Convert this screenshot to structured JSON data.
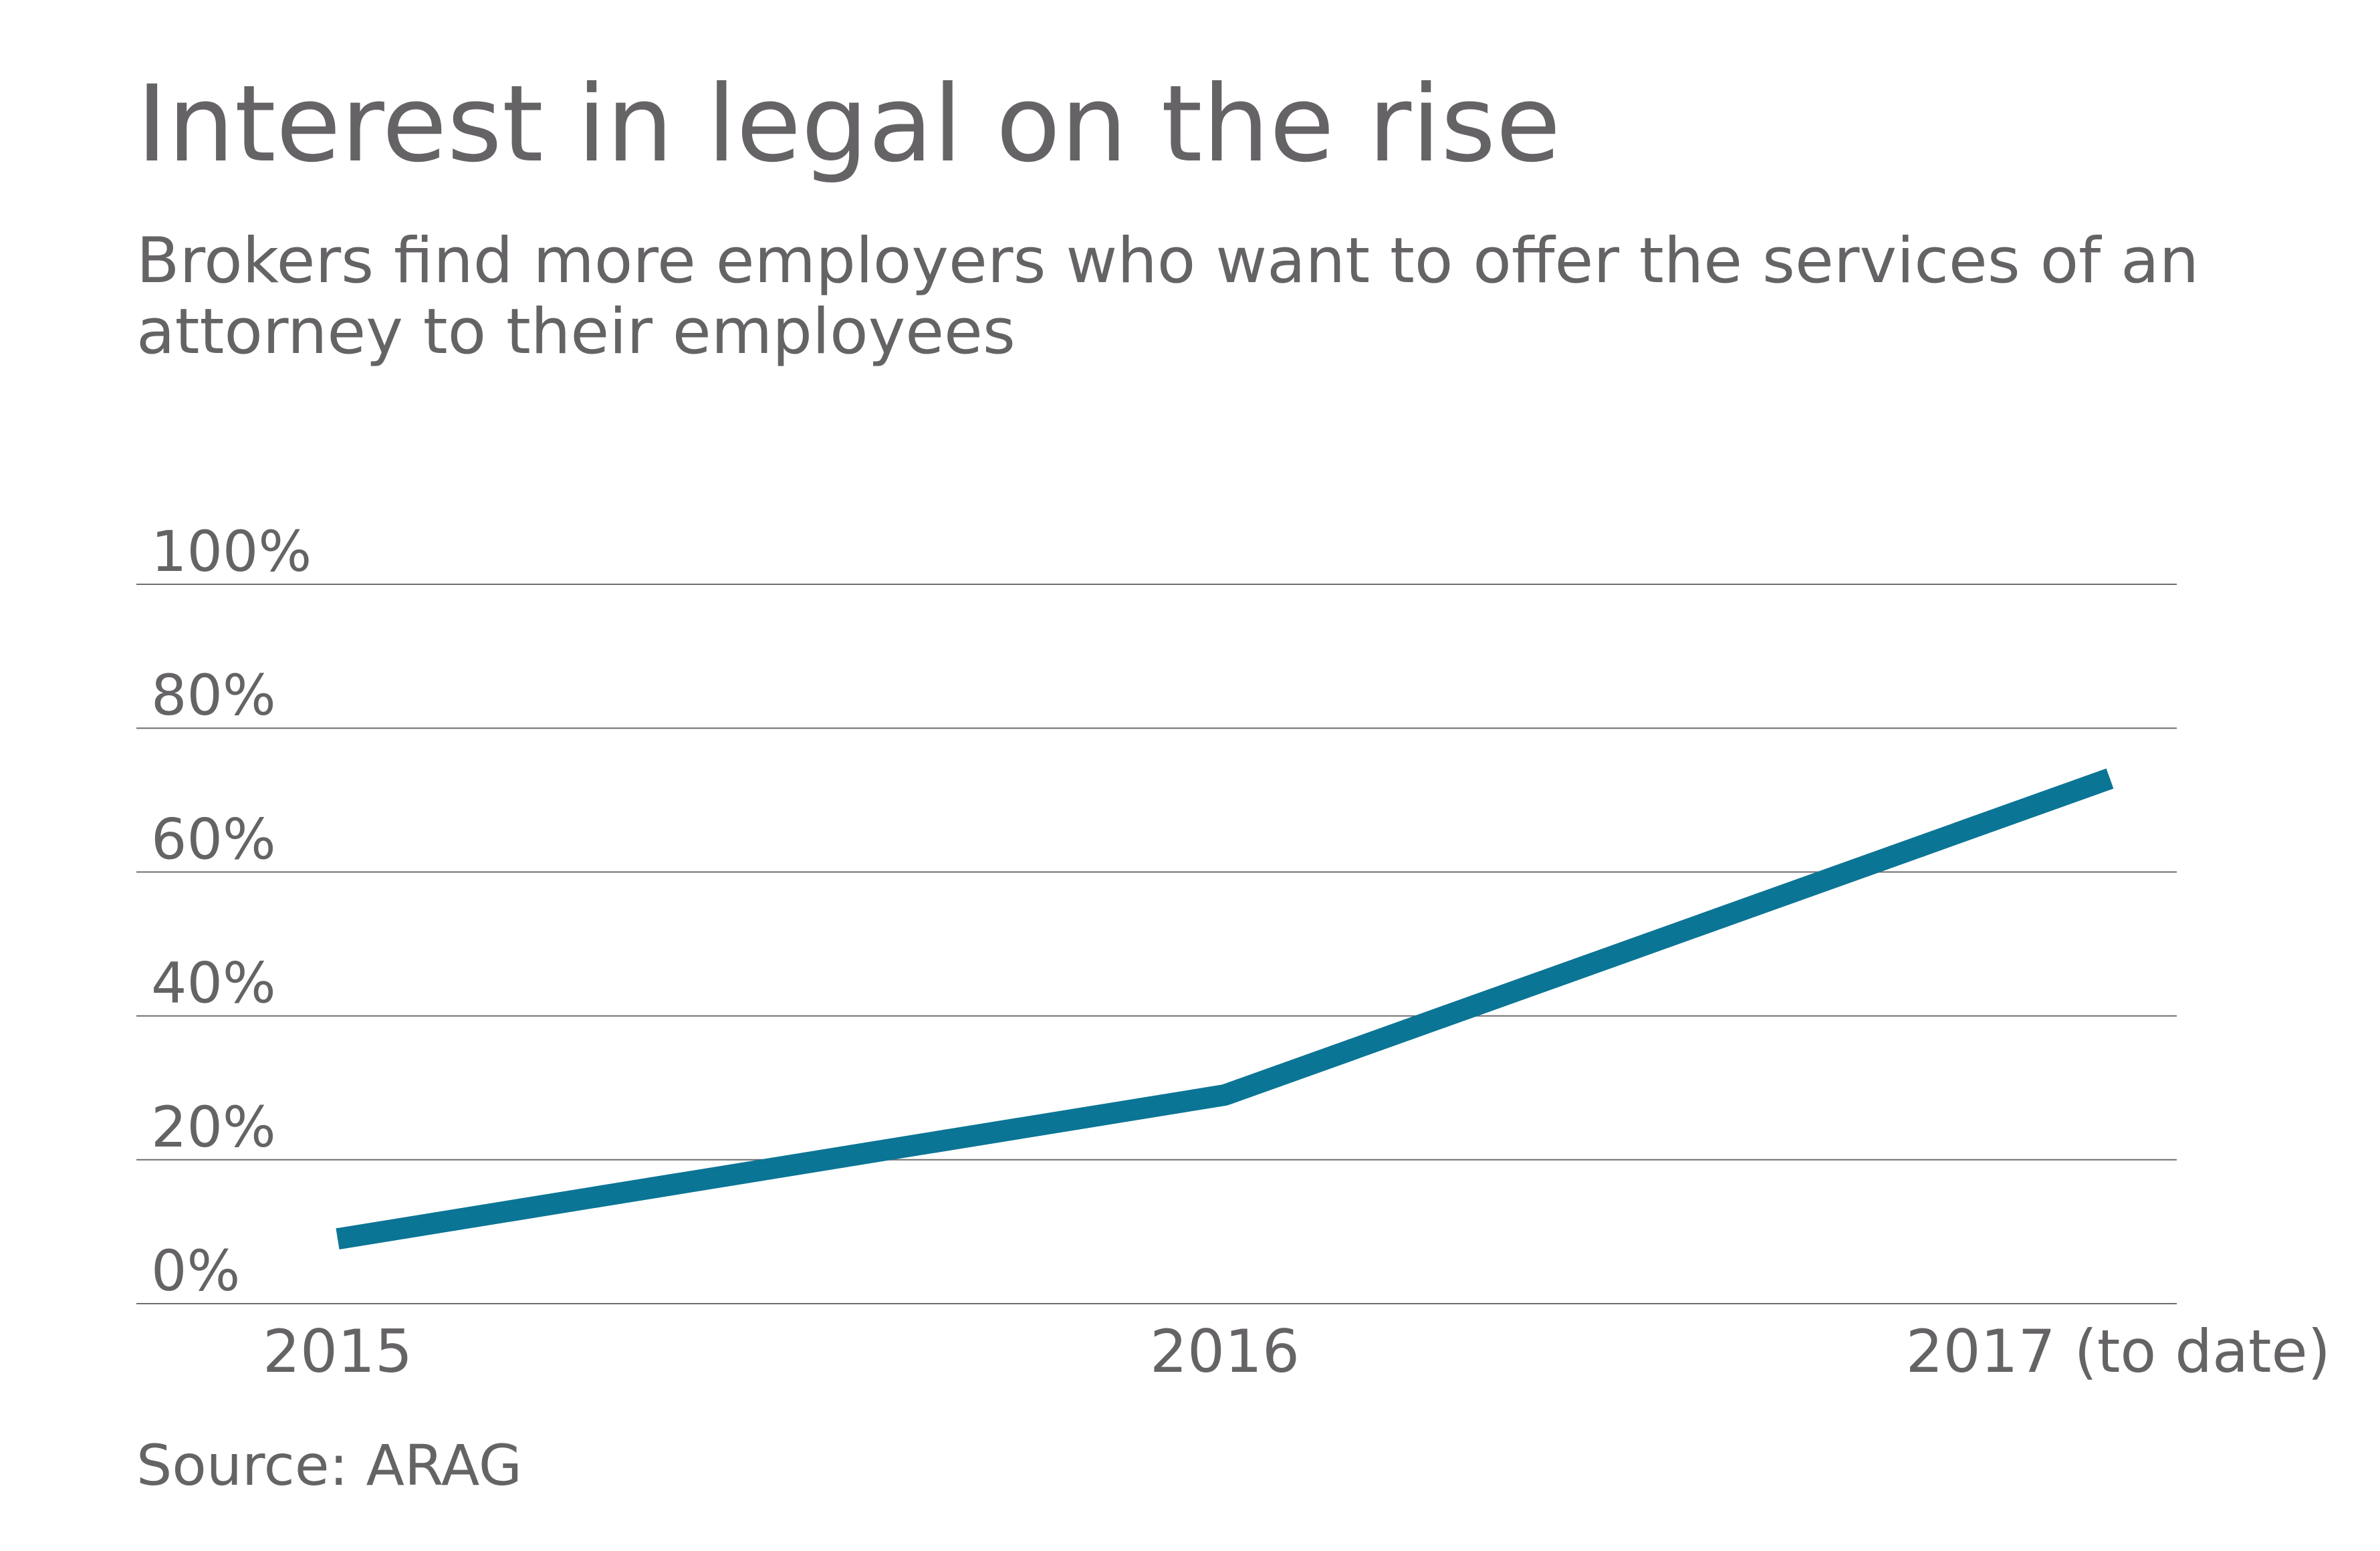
{
  "chart_data": {
    "type": "line",
    "title": "Interest in legal on the rise",
    "subtitle": "Brokers find more employers who want to offer the services of an attorney to their employees",
    "source": "Source: ARAG",
    "categories": [
      "2015",
      "2016",
      "2017 (to date)"
    ],
    "yticks": [
      "0%",
      "20%",
      "40%",
      "60%",
      "80%",
      "100%"
    ],
    "ylim": [
      0,
      100
    ],
    "grid": true,
    "series": [
      {
        "values": [
          9,
          29,
          73
        ],
        "color": "#0b7595"
      }
    ],
    "colors": {
      "text": "#656365",
      "gridline": "#6f6d6f",
      "line": "#0b7595"
    }
  }
}
